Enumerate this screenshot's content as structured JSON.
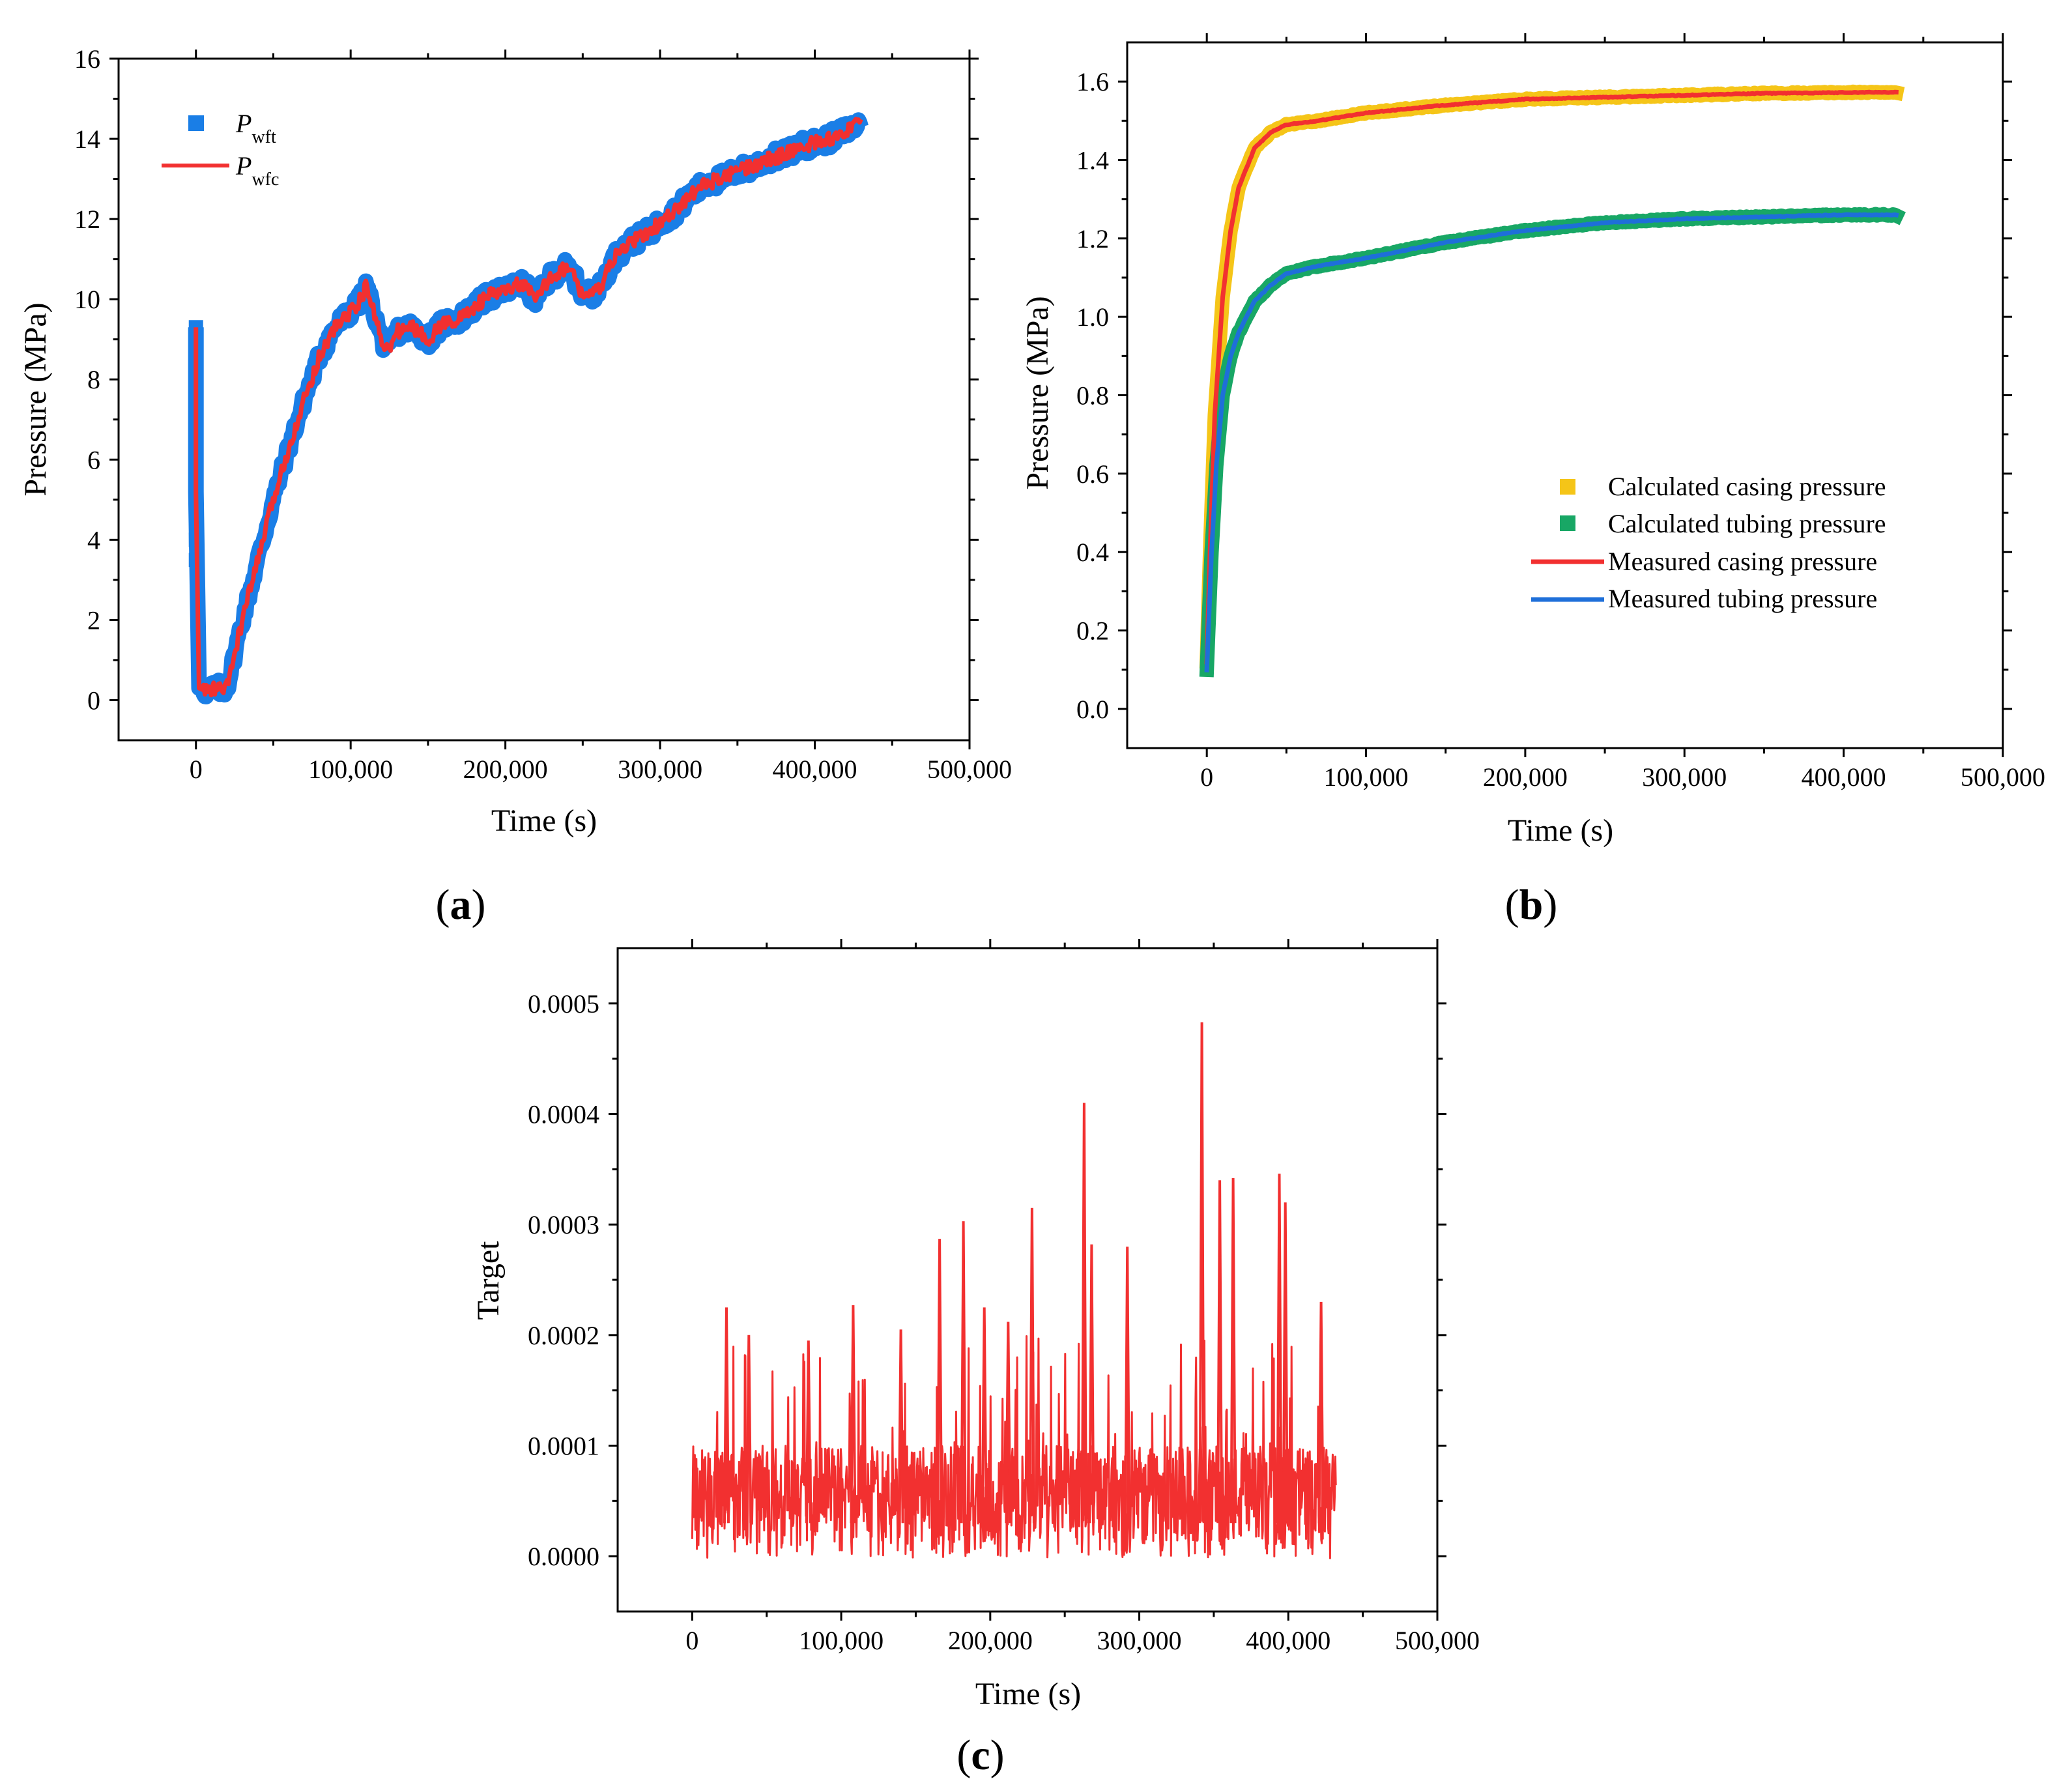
{
  "colors": {
    "blue": "#1a7ee6",
    "red": "#f23030",
    "yellow": "#f5c518",
    "green": "#18a765",
    "legend_blue": "#1e6fd9"
  },
  "chart_data": [
    {
      "id": "a",
      "type": "line",
      "panel_label": "(a)",
      "panel_letter": "a",
      "xlabel": "Time (s)",
      "ylabel": "Pressure (MPa)",
      "xlim": [
        -50000,
        500000
      ],
      "ylim": [
        -1,
        16
      ],
      "xticks": [
        0,
        100000,
        200000,
        300000,
        400000,
        500000
      ],
      "xtick_labels": [
        "0",
        "100,000",
        "200,000",
        "300,000",
        "400,000",
        "500,000"
      ],
      "yticks": [
        0,
        2,
        4,
        6,
        8,
        10,
        12,
        14,
        16
      ],
      "ytick_labels": [
        "0",
        "2",
        "4",
        "6",
        "8",
        "10",
        "12",
        "14",
        "16"
      ],
      "legend_position": "top-left",
      "series": [
        {
          "name": "P_wft",
          "legend_main": "P",
          "legend_sub": "wft",
          "style": "square-markers",
          "color": "#1a7ee6",
          "x": [
            0,
            0,
            2000,
            5000,
            20000,
            30000,
            40000,
            50000,
            60000,
            70000,
            80000,
            90000,
            100000,
            105000,
            110000,
            115000,
            120000,
            125000,
            130000,
            140000,
            150000,
            160000,
            170000,
            180000,
            190000,
            200000,
            210000,
            220000,
            230000,
            240000,
            245000,
            250000,
            260000,
            270000,
            280000,
            290000,
            300000,
            310000,
            320000,
            330000,
            340000,
            350000,
            360000,
            370000,
            380000,
            390000,
            400000,
            410000,
            420000,
            430000
          ],
          "y": [
            9.3,
            5.2,
            0.3,
            0.25,
            0.3,
            2.0,
            3.5,
            5.0,
            6.3,
            7.5,
            8.6,
            9.3,
            9.7,
            9.9,
            10.3,
            9.7,
            9.0,
            8.7,
            9.2,
            9.3,
            9.0,
            9.4,
            9.5,
            9.8,
            10.1,
            10.2,
            10.4,
            10.0,
            10.6,
            10.8,
            10.5,
            10.1,
            10.2,
            11.0,
            11.4,
            11.6,
            11.9,
            12.2,
            12.6,
            12.9,
            13.0,
            13.2,
            13.3,
            13.5,
            13.6,
            13.8,
            13.9,
            14.0,
            14.2,
            14.4
          ]
        },
        {
          "name": "P_wfc",
          "legend_main": "P",
          "legend_sub": "wfc",
          "style": "line",
          "color": "#f23030",
          "x": [
            0,
            0,
            2000,
            5000,
            20000,
            30000,
            40000,
            50000,
            60000,
            70000,
            80000,
            90000,
            100000,
            105000,
            110000,
            115000,
            120000,
            125000,
            130000,
            140000,
            150000,
            160000,
            170000,
            180000,
            190000,
            200000,
            210000,
            220000,
            230000,
            240000,
            245000,
            250000,
            260000,
            270000,
            280000,
            290000,
            300000,
            310000,
            320000,
            330000,
            340000,
            350000,
            360000,
            370000,
            380000,
            390000,
            400000,
            410000,
            420000,
            430000
          ],
          "y": [
            9.3,
            5.2,
            0.3,
            0.25,
            0.3,
            2.0,
            3.5,
            5.0,
            6.3,
            7.5,
            8.6,
            9.3,
            9.7,
            9.9,
            10.3,
            9.7,
            9.0,
            8.7,
            9.2,
            9.3,
            9.0,
            9.4,
            9.5,
            9.8,
            10.1,
            10.2,
            10.4,
            10.0,
            10.6,
            10.8,
            10.5,
            10.1,
            10.2,
            11.0,
            11.4,
            11.6,
            11.9,
            12.2,
            12.6,
            12.9,
            13.0,
            13.2,
            13.3,
            13.5,
            13.6,
            13.8,
            13.9,
            14.0,
            14.2,
            14.4
          ]
        }
      ]
    },
    {
      "id": "b",
      "type": "line",
      "panel_label": "(b)",
      "panel_letter": "b",
      "xlabel": "Time (s)",
      "ylabel": "Pressure (MPa)",
      "xlim": [
        -50000,
        500000
      ],
      "ylim": [
        -0.1,
        1.7
      ],
      "xticks": [
        0,
        100000,
        200000,
        300000,
        400000,
        500000
      ],
      "xtick_labels": [
        "0",
        "100,000",
        "200,000",
        "300,000",
        "400,000",
        "500,000"
      ],
      "yticks": [
        0.0,
        0.2,
        0.4,
        0.6,
        0.8,
        1.0,
        1.2,
        1.4,
        1.6
      ],
      "ytick_labels": [
        "0.0",
        "0.2",
        "0.4",
        "0.6",
        "0.8",
        "1.0",
        "1.2",
        "1.4",
        "1.6"
      ],
      "legend_position": "lower-right",
      "series": [
        {
          "name": "Calculated casing pressure",
          "style": "square-markers",
          "color": "#f5c518",
          "x": [
            0,
            2000,
            5000,
            10000,
            15000,
            20000,
            30000,
            40000,
            50000,
            70000,
            100000,
            150000,
            200000,
            250000,
            300000,
            350000,
            400000,
            433000
          ],
          "y": [
            0.12,
            0.4,
            0.75,
            1.05,
            1.22,
            1.33,
            1.43,
            1.47,
            1.49,
            1.5,
            1.52,
            1.54,
            1.555,
            1.56,
            1.565,
            1.57,
            1.572,
            1.573
          ]
        },
        {
          "name": "Calculated tubing pressure",
          "style": "square-markers",
          "color": "#18a765",
          "x": [
            0,
            3000,
            6000,
            10000,
            15000,
            20000,
            30000,
            40000,
            50000,
            70000,
            100000,
            150000,
            200000,
            250000,
            300000,
            350000,
            400000,
            433000
          ],
          "y": [
            0.1,
            0.4,
            0.62,
            0.8,
            0.9,
            0.96,
            1.04,
            1.08,
            1.11,
            1.13,
            1.15,
            1.19,
            1.22,
            1.24,
            1.25,
            1.255,
            1.26,
            1.26
          ]
        },
        {
          "name": "Measured casing pressure",
          "style": "line",
          "color": "#f23030",
          "x": [
            0,
            2000,
            5000,
            10000,
            15000,
            20000,
            30000,
            40000,
            50000,
            70000,
            100000,
            150000,
            200000,
            250000,
            300000,
            350000,
            400000,
            433000
          ],
          "y": [
            0.12,
            0.4,
            0.75,
            1.05,
            1.22,
            1.33,
            1.43,
            1.47,
            1.49,
            1.5,
            1.52,
            1.54,
            1.555,
            1.56,
            1.565,
            1.57,
            1.572,
            1.573
          ]
        },
        {
          "name": "Measured tubing pressure",
          "style": "line",
          "color": "#1e6fd9",
          "x": [
            0,
            3000,
            6000,
            10000,
            15000,
            20000,
            30000,
            40000,
            50000,
            70000,
            100000,
            150000,
            200000,
            250000,
            300000,
            350000,
            400000,
            433000
          ],
          "y": [
            0.1,
            0.4,
            0.62,
            0.8,
            0.9,
            0.96,
            1.04,
            1.08,
            1.11,
            1.13,
            1.15,
            1.19,
            1.22,
            1.24,
            1.25,
            1.255,
            1.26,
            1.26
          ]
        }
      ]
    },
    {
      "id": "c",
      "type": "line",
      "panel_label": "(c)",
      "panel_letter": "c",
      "xlabel": "Time (s)",
      "ylabel": "Target",
      "xlim": [
        -50000,
        500000
      ],
      "ylim": [
        -5e-05,
        0.00055
      ],
      "xticks": [
        0,
        100000,
        200000,
        300000,
        400000,
        500000
      ],
      "xtick_labels": [
        "0",
        "100,000",
        "200,000",
        "300,000",
        "400,000",
        "500,000"
      ],
      "yticks": [
        0.0,
        0.0001,
        0.0002,
        0.0003,
        0.0004,
        0.0005
      ],
      "ytick_labels": [
        "0.0000",
        "0.0001",
        "0.0002",
        "0.0003",
        "0.0004",
        "0.0005"
      ],
      "series": [
        {
          "name": "Target",
          "style": "line",
          "color": "#f23030",
          "x_range": [
            0,
            432000
          ],
          "baseline_range": [
            1e-05,
            0.0001
          ],
          "peaks": [
            {
              "x": 23000,
              "y": 0.000225
            },
            {
              "x": 38000,
              "y": 0.0002
            },
            {
              "x": 78000,
              "y": 0.000195
            },
            {
              "x": 108000,
              "y": 0.000227
            },
            {
              "x": 140000,
              "y": 0.000205
            },
            {
              "x": 166000,
              "y": 0.000287
            },
            {
              "x": 182000,
              "y": 0.000303
            },
            {
              "x": 196000,
              "y": 0.000225
            },
            {
              "x": 212000,
              "y": 0.000212
            },
            {
              "x": 228000,
              "y": 0.000315
            },
            {
              "x": 263000,
              "y": 0.00041
            },
            {
              "x": 268000,
              "y": 0.000282
            },
            {
              "x": 292000,
              "y": 0.00028
            },
            {
              "x": 342000,
              "y": 0.000483
            },
            {
              "x": 354000,
              "y": 0.00034
            },
            {
              "x": 363000,
              "y": 0.000342
            },
            {
              "x": 394000,
              "y": 0.000346
            },
            {
              "x": 398000,
              "y": 0.00032
            },
            {
              "x": 422000,
              "y": 0.00023
            }
          ]
        }
      ]
    }
  ]
}
